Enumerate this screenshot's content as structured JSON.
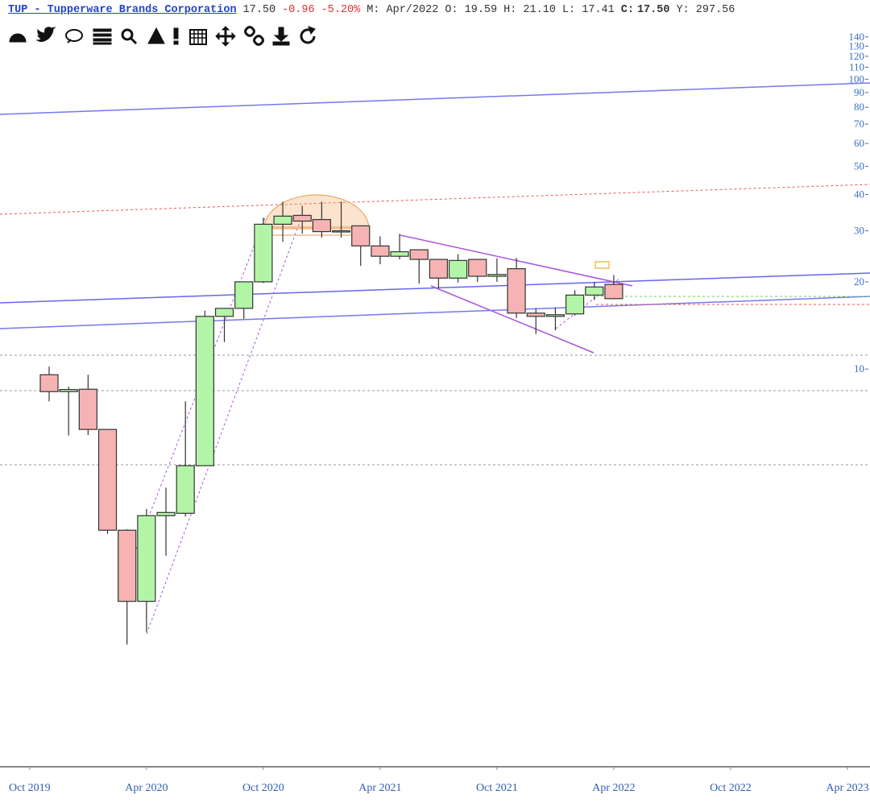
{
  "chart_data": {
    "type": "candlestick",
    "header": {
      "symbol": "TUP - Tupperware Brands Corporation",
      "last": "17.50",
      "change": "-0.96",
      "change_pct": "-5.20%",
      "period": "M: Apr/2022",
      "open": "O: 19.59",
      "high": "H: 21.10",
      "low": "L: 17.41",
      "close_label": "C:",
      "close": "17.50",
      "extra": "Y: 297.56"
    },
    "x": [
      "2019-11",
      "2019-12",
      "2020-01",
      "2020-02",
      "2020-03",
      "2020-04",
      "2020-05",
      "2020-06",
      "2020-07",
      "2020-08",
      "2020-09",
      "2020-10",
      "2020-11",
      "2020-12",
      "2021-01",
      "2021-02",
      "2021-03",
      "2021-04",
      "2021-05",
      "2021-06",
      "2021-07",
      "2021-08",
      "2021-09",
      "2021-10",
      "2021-11",
      "2021-12",
      "2022-01",
      "2022-02",
      "2022-03",
      "2022-04"
    ],
    "open": [
      9.56,
      8.36,
      8.52,
      6.19,
      2.78,
      1.58,
      3.12,
      3.18,
      4.64,
      15.2,
      16.2,
      20.0,
      31.6,
      33.9,
      32.8,
      29.8,
      31.2,
      26.6,
      24.5,
      25.8,
      23.9,
      20.6,
      23.9,
      20.9,
      22.2,
      15.6,
      15.2,
      15.5,
      18.0,
      19.59
    ],
    "high": [
      10.2,
      8.7,
      9.56,
      6.2,
      2.8,
      3.29,
      3.9,
      7.74,
      15.9,
      16.2,
      20.0,
      33.3,
      37.8,
      36.6,
      37.8,
      37.8,
      31.2,
      28.7,
      29.3,
      25.8,
      24.0,
      24.9,
      24.0,
      24.1,
      24.2,
      16.2,
      16.3,
      18.7,
      20.0,
      21.1
    ],
    "low": [
      7.74,
      5.9,
      5.92,
      2.7,
      1.12,
      1.24,
      2.27,
      3.1,
      4.64,
      12.4,
      14.9,
      19.8,
      27.5,
      29.3,
      28.4,
      28.4,
      22.7,
      23.0,
      23.9,
      19.7,
      19.0,
      19.9,
      20.0,
      20.0,
      15.0,
      13.2,
      13.6,
      15.3,
      17.3,
      17.41
    ],
    "close": [
      8.36,
      8.5,
      6.19,
      2.78,
      1.58,
      3.12,
      3.2,
      4.64,
      15.2,
      16.2,
      20.0,
      31.6,
      33.7,
      32.4,
      29.8,
      30.0,
      26.6,
      24.5,
      25.4,
      23.9,
      20.6,
      23.7,
      20.9,
      21.2,
      15.6,
      15.2,
      15.4,
      18.0,
      19.2,
      17.5
    ],
    "up_color": "#b3f5a6",
    "down_color": "#f5b3b3",
    "xlim": [
      "2019-09",
      "2023-06"
    ],
    "xticks": [
      {
        "value": "2019-10",
        "label": "Oct 2019"
      },
      {
        "value": "2020-04",
        "label": "Apr 2020"
      },
      {
        "value": "2020-10",
        "label": "Oct 2020"
      },
      {
        "value": "2021-04",
        "label": "Apr 2021"
      },
      {
        "value": "2021-10",
        "label": "Oct 2021"
      },
      {
        "value": "2022-04",
        "label": "Apr 2022"
      },
      {
        "value": "2022-10",
        "label": "Oct 2022"
      },
      {
        "value": "2023-04",
        "label": "Apr 2023"
      }
    ],
    "ylim": [
      0.43,
      150
    ],
    "log_y": true,
    "yticks": [
      10,
      20,
      30,
      40,
      50,
      60,
      70,
      80,
      90,
      100,
      110,
      120,
      130,
      140
    ]
  }
}
